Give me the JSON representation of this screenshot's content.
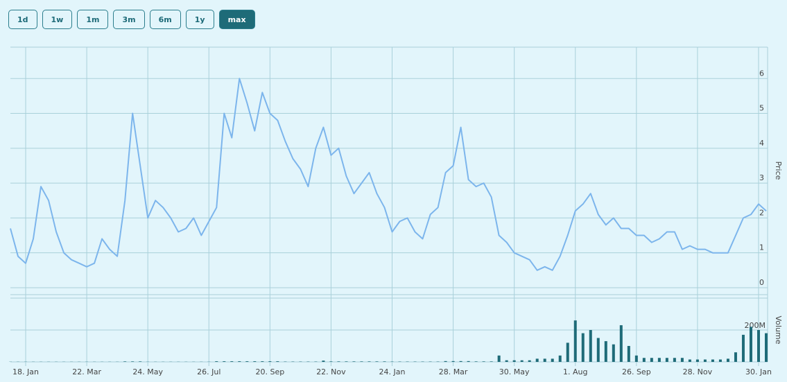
{
  "buttons": [
    "1d",
    "1w",
    "1m",
    "3m",
    "6m",
    "1y",
    "max"
  ],
  "active_button": 6,
  "chart_data": {
    "type": "line",
    "ylabel": "Price",
    "y2label": "Volume",
    "categories": [
      null,
      null,
      "18. Jan",
      null,
      null,
      null,
      null,
      null,
      null,
      null,
      "22. Mar",
      null,
      null,
      null,
      null,
      null,
      null,
      null,
      "24. May",
      null,
      null,
      null,
      null,
      null,
      null,
      null,
      "26. Jul",
      null,
      null,
      null,
      null,
      null,
      null,
      null,
      "20. Sep",
      null,
      null,
      null,
      null,
      null,
      null,
      null,
      "22. Nov",
      null,
      null,
      null,
      null,
      null,
      null,
      null,
      "24. Jan",
      null,
      null,
      null,
      null,
      null,
      null,
      null,
      "28. Mar",
      null,
      null,
      null,
      null,
      null,
      null,
      null,
      "30. May",
      null,
      null,
      null,
      null,
      null,
      null,
      null,
      "1. Aug",
      null,
      null,
      null,
      null,
      null,
      null,
      null,
      "26. Sep",
      null,
      null,
      null,
      null,
      null,
      null,
      null,
      "28. Nov",
      null,
      null,
      null,
      null,
      null,
      null,
      null,
      "30. Jan",
      null
    ],
    "series": [
      {
        "color": "#7cb5ec",
        "values": [
          1.7,
          0.9,
          0.7,
          1.4,
          2.9,
          2.5,
          1.6,
          1.0,
          0.8,
          0.7,
          0.6,
          0.7,
          1.4,
          1.1,
          0.9,
          2.5,
          5.0,
          3.5,
          2.0,
          2.5,
          2.3,
          2.0,
          1.6,
          1.7,
          2.0,
          1.5,
          1.9,
          2.3,
          5.0,
          4.3,
          6.0,
          5.3,
          4.5,
          5.6,
          5.0,
          4.8,
          4.2,
          3.7,
          3.4,
          2.9,
          4.0,
          4.6,
          3.8,
          4.0,
          3.2,
          2.7,
          3.0,
          3.3,
          2.7,
          2.3,
          1.6,
          1.9,
          2.0,
          1.6,
          1.4,
          2.1,
          2.3,
          3.3,
          3.5,
          4.6,
          3.1,
          2.9,
          3.0,
          2.6,
          1.5,
          1.3,
          1.0,
          0.9,
          0.8,
          0.5,
          0.6,
          0.5,
          0.9,
          1.5,
          2.2,
          2.4,
          2.7,
          2.1,
          1.8,
          2.0,
          1.7,
          1.7,
          1.5,
          1.5,
          1.3,
          1.4,
          1.6,
          1.6,
          1.1,
          1.2,
          1.1,
          1.1,
          1.0,
          1.0,
          1.0,
          1.5,
          2.0,
          2.1,
          2.4,
          2.2
        ]
      },
      {
        "color": "#1e6b78",
        "axis": "y2",
        "values": [
          1,
          1,
          1,
          1,
          1,
          1,
          1,
          1,
          1,
          1,
          1,
          1,
          1,
          1,
          1,
          3,
          3,
          3,
          1,
          1,
          1,
          1,
          1,
          1,
          1,
          1,
          1,
          4,
          4,
          4,
          4,
          4,
          4,
          4,
          4,
          4,
          2,
          2,
          2,
          2,
          2,
          8,
          3,
          3,
          3,
          3,
          3,
          3,
          3,
          3,
          2,
          2,
          2,
          2,
          2,
          2,
          2,
          5,
          5,
          5,
          5,
          3,
          3,
          3,
          40,
          10,
          10,
          10,
          10,
          20,
          20,
          20,
          40,
          120,
          260,
          180,
          200,
          150,
          130,
          110,
          230,
          100,
          40,
          25,
          25,
          25,
          25,
          25,
          25,
          15,
          15,
          15,
          15,
          15,
          20,
          60,
          170,
          220,
          200,
          180
        ]
      }
    ],
    "ylim": [
      -0.2,
      6.9
    ],
    "yticks": [
      0,
      1,
      2,
      3,
      4,
      5,
      6
    ],
    "y2lim": [
      0,
      400
    ],
    "y2ticks": [
      {
        "value": 200,
        "label": "200M"
      }
    ],
    "grid": true
  }
}
